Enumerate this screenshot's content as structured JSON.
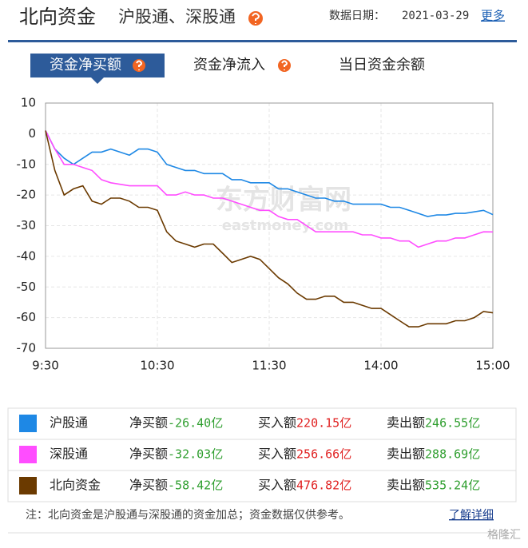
{
  "header": {
    "title": "北向资金",
    "subtitle": "沪股通、深股通",
    "date_label": "数据日期：",
    "date": "2021-03-29",
    "more": "更多"
  },
  "tabs": [
    "资金净买额",
    "资金净流入",
    "当日资金余额"
  ],
  "chart_data": {
    "type": "line",
    "watermark": "东方财富网",
    "watermark_sub": "eastmoney.com",
    "x": [
      "9:30",
      null,
      null,
      null,
      null,
      null,
      null,
      null,
      null,
      null,
      null,
      null,
      "10:30",
      null,
      null,
      null,
      null,
      null,
      null,
      null,
      null,
      null,
      null,
      null,
      "11:30",
      null,
      null,
      null,
      null,
      null,
      null,
      null,
      null,
      null,
      null,
      null,
      "14:00",
      null,
      null,
      null,
      null,
      null,
      null,
      null,
      null,
      null,
      null,
      null,
      "15:00"
    ],
    "ylim": [
      -70,
      10
    ],
    "yticks": [
      -70,
      -60,
      -50,
      -40,
      -30,
      -20,
      -10,
      0,
      10
    ],
    "grid": true,
    "series": [
      {
        "name": "沪股通",
        "color": "#1e88e5",
        "values": [
          1,
          -5,
          -8,
          -10,
          -8,
          -6,
          -6,
          -5,
          -6,
          -7,
          -5,
          -5,
          -6,
          -10,
          -11,
          -12,
          -12,
          -13,
          -13,
          -13,
          -15,
          -15,
          -16,
          -16,
          -16,
          -18,
          -18,
          -19,
          -20,
          -21,
          -21,
          -22,
          -22,
          -23,
          -23,
          -23,
          -23,
          -24,
          -24,
          -25,
          -26,
          -27,
          -26.5,
          -26.5,
          -26,
          -26,
          -25.5,
          -25,
          -26.4
        ]
      },
      {
        "name": "深股通",
        "color": "#ff4dff",
        "values": [
          1,
          -5,
          -10,
          -10,
          -11,
          -12,
          -15,
          -16,
          -16.5,
          -17,
          -17,
          -17,
          -17,
          -20,
          -20,
          -19,
          -20,
          -20,
          -21,
          -21,
          -22,
          -23,
          -24,
          -25,
          -25,
          -27,
          -28,
          -28,
          -30,
          -32,
          -32,
          -32,
          -32,
          -32,
          -33,
          -33,
          -34,
          -34,
          -35,
          -35,
          -37,
          -36,
          -35,
          -35,
          -34,
          -34,
          -33,
          -32,
          -32.03
        ]
      },
      {
        "name": "北向资金",
        "color": "#6b3a00",
        "values": [
          1,
          -12,
          -20,
          -18,
          -17,
          -22,
          -23,
          -21,
          -21,
          -22,
          -24,
          -24,
          -25,
          -32,
          -35,
          -36,
          -37,
          -36,
          -36,
          -39,
          -42,
          -41,
          -40,
          -41,
          -44,
          -47,
          -49,
          -52,
          -54,
          -54,
          -53,
          -53,
          -55,
          -55,
          -56,
          -57,
          -57,
          -59,
          -61,
          -63,
          -63,
          -62,
          -62,
          -62,
          -61,
          -61,
          -60,
          -58,
          -58.42
        ]
      }
    ]
  },
  "summary": {
    "rows": [
      {
        "net_label": "净买额",
        "net": "-26.40亿",
        "buy_label": "买入额",
        "buy": "220.15亿",
        "sell_label": "卖出额",
        "sell": "246.55亿"
      },
      {
        "net_label": "净买额",
        "net": "-32.03亿",
        "buy_label": "买入额",
        "buy": "256.66亿",
        "sell_label": "卖出额",
        "sell": "288.69亿"
      },
      {
        "net_label": "净买额",
        "net": "-58.42亿",
        "buy_label": "买入额",
        "buy": "476.82亿",
        "sell_label": "卖出额",
        "sell": "535.24亿"
      }
    ]
  },
  "note": "注：北向资金是沪股通与深股通的资金加总；资金数据仅供参考。",
  "note_link": "了解详细",
  "corner": "格隆汇"
}
